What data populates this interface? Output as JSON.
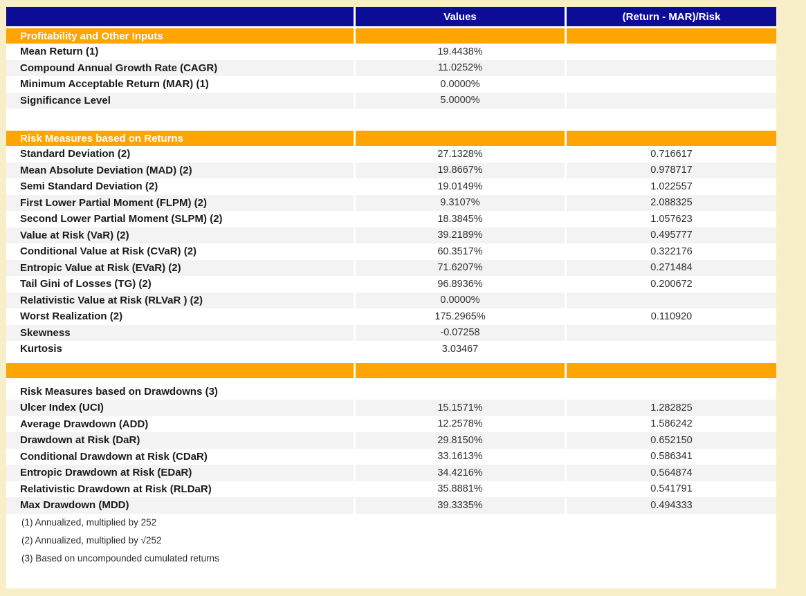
{
  "page": {
    "background_color": "#F8EFC8"
  },
  "table": {
    "style": {
      "header_bg": "#0C0C96",
      "header_text_color": "#FFFFFF",
      "section_bg": "#FFA502",
      "section_text_color": "#FFFFFF",
      "stripe_bg": "#F3F3F3",
      "body_bg": "#FFFFFF"
    },
    "columns": [
      "",
      "Values",
      "(Return - MAR)/Risk"
    ],
    "rows": [
      {
        "type": "section",
        "label": "Profitability and Other Inputs"
      },
      {
        "type": "data",
        "label": "Mean Return (1)",
        "value": "19.4438%",
        "ratio": ""
      },
      {
        "type": "data",
        "label": "Compound Annual Growth Rate (CAGR)",
        "value": "11.0252%",
        "ratio": ""
      },
      {
        "type": "data",
        "label": "Minimum Acceptable Return (MAR) (1)",
        "value": "0.0000%",
        "ratio": ""
      },
      {
        "type": "data",
        "label": "Significance Level",
        "value": "5.0000%",
        "ratio": ""
      },
      {
        "type": "spacer_lg"
      },
      {
        "type": "section",
        "label": "Risk Measures based on Returns"
      },
      {
        "type": "data",
        "label": "Standard Deviation (2)",
        "value": "27.1328%",
        "ratio": "0.716617"
      },
      {
        "type": "data",
        "label": "Mean Absolute Deviation (MAD) (2)",
        "value": "19.8667%",
        "ratio": "0.978717"
      },
      {
        "type": "data",
        "label": "Semi Standard Deviation (2)",
        "value": "19.0149%",
        "ratio": "1.022557"
      },
      {
        "type": "data",
        "label": "First Lower Partial Moment (FLPM) (2)",
        "value": "9.3107%",
        "ratio": "2.088325"
      },
      {
        "type": "data",
        "label": "Second Lower Partial Moment (SLPM) (2)",
        "value": "18.3845%",
        "ratio": "1.057623"
      },
      {
        "type": "data",
        "label": "Value at Risk (VaR) (2)",
        "value": "39.2189%",
        "ratio": "0.495777"
      },
      {
        "type": "data",
        "label": "Conditional Value at Risk (CVaR) (2)",
        "value": "60.3517%",
        "ratio": "0.322176"
      },
      {
        "type": "data",
        "label": "Entropic Value at Risk (EVaR) (2)",
        "value": "71.6207%",
        "ratio": "0.271484"
      },
      {
        "type": "data",
        "label": "Tail Gini of Losses (TG) (2)",
        "value": "96.8936%",
        "ratio": "0.200672"
      },
      {
        "type": "data",
        "label": "Relativistic Value at Risk (RLVaR ) (2)",
        "value": "0.0000%",
        "ratio": ""
      },
      {
        "type": "data",
        "label": "Worst Realization (2)",
        "value": "175.2965%",
        "ratio": "0.110920"
      },
      {
        "type": "data",
        "label": "Skewness",
        "value": "-0.07258",
        "ratio": ""
      },
      {
        "type": "data",
        "label": "Kurtosis",
        "value": "3.03467",
        "ratio": ""
      },
      {
        "type": "spacer_sm"
      },
      {
        "type": "section",
        "label": ""
      },
      {
        "type": "spacer_sm"
      },
      {
        "type": "title",
        "label": "Risk Measures based on Drawdowns (3)",
        "value": "",
        "ratio": ""
      },
      {
        "type": "data",
        "label": "Ulcer Index (UCI)",
        "value": "15.1571%",
        "ratio": "1.282825"
      },
      {
        "type": "data",
        "label": "Average Drawdown (ADD)",
        "value": "12.2578%",
        "ratio": "1.586242"
      },
      {
        "type": "data",
        "label": "Drawdown at Risk (DaR)",
        "value": "29.8150%",
        "ratio": "0.652150"
      },
      {
        "type": "data",
        "label": "Conditional Drawdown at Risk (CDaR)",
        "value": "33.1613%",
        "ratio": "0.586341"
      },
      {
        "type": "data",
        "label": "Entropic Drawdown at Risk (EDaR)",
        "value": "34.4216%",
        "ratio": "0.564874"
      },
      {
        "type": "data",
        "label": "Relativistic Drawdown at Risk (RLDaR)",
        "value": "35.8881%",
        "ratio": "0.541791"
      },
      {
        "type": "data",
        "label": "Max Drawdown (MDD)",
        "value": "39.3335%",
        "ratio": "0.494333"
      },
      {
        "type": "footnote",
        "label": "(1) Annualized, multiplied by 252"
      },
      {
        "type": "footnote",
        "label": "(2) Annualized, multiplied by √252"
      },
      {
        "type": "footnote",
        "label": "(3) Based on uncompounded cumulated returns"
      }
    ]
  }
}
